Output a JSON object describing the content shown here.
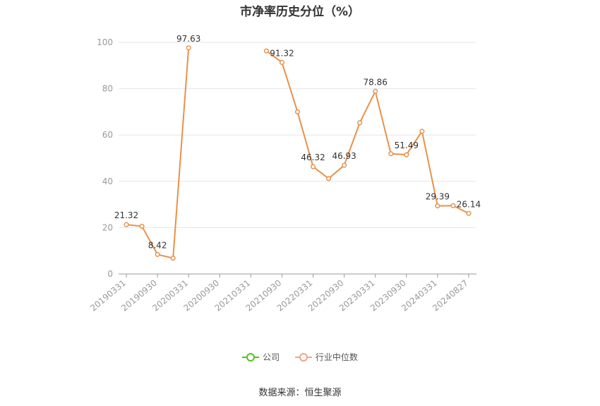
{
  "title": "市净率历史分位（%）",
  "source": "数据来源：恒生聚源",
  "legend": [
    {
      "label": "公司",
      "color": "#52c41a"
    },
    {
      "label": "行业中位数",
      "color": "#f4a582"
    }
  ],
  "chart_data": {
    "type": "line",
    "title": "市净率历史分位（%）",
    "x": [
      "20190331",
      "20190630",
      "20190930",
      "20191231",
      "20200331",
      "20200630",
      "20200930",
      "20201231",
      "20210331",
      "20210630",
      "20210930",
      "20211231",
      "20220331",
      "20220630",
      "20220930",
      "20221231",
      "20230331",
      "20230630",
      "20230930",
      "20231231",
      "20240331",
      "20240630",
      "20240827"
    ],
    "x_tick_labels": [
      "20190331",
      "20190930",
      "20200331",
      "20200930",
      "20210331",
      "20210930",
      "20220331",
      "20220930",
      "20230331",
      "20230930",
      "20240331",
      "20240827"
    ],
    "ylim": [
      0,
      100
    ],
    "y_ticks": [
      0,
      20,
      40,
      60,
      80,
      100
    ],
    "grid": true,
    "legend_position": "bottom",
    "series": [
      {
        "name": "公司",
        "color": "#e8914a",
        "values": [
          21.32,
          20.6,
          8.42,
          6.8,
          97.63,
          null,
          null,
          null,
          null,
          96.3,
          91.32,
          70.0,
          46.32,
          41.2,
          46.93,
          65.3,
          78.86,
          51.9,
          51.49,
          61.6,
          29.39,
          29.5,
          26.14
        ],
        "labels": [
          "21.32",
          null,
          "8.42",
          null,
          "97.63",
          null,
          null,
          null,
          null,
          null,
          "91.32",
          null,
          "46.32",
          null,
          "46.93",
          null,
          "78.86",
          null,
          "51.49",
          null,
          "29.39",
          null,
          "26.14"
        ]
      }
    ]
  }
}
